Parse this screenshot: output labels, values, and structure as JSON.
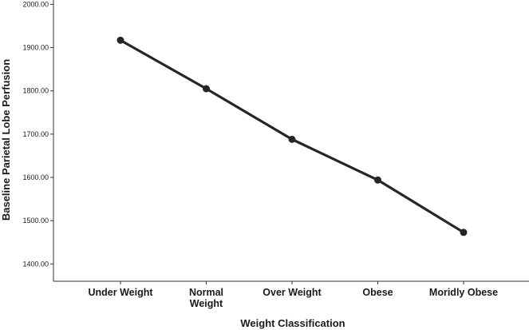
{
  "chart_data": {
    "type": "line",
    "categories": [
      "Under Weight",
      "Normal Weight",
      "Over Weight",
      "Obese",
      "Moridly Obese"
    ],
    "category_lines": [
      [
        "Under Weight"
      ],
      [
        "Normal",
        "Weight"
      ],
      [
        "Over Weight"
      ],
      [
        "Obese"
      ],
      [
        "Moridly Obese"
      ]
    ],
    "series": [
      {
        "values": [
          1917,
          1805,
          1688,
          1594,
          1473
        ],
        "color": "#262626"
      }
    ],
    "xlabel": "Weight Classification",
    "ylabel": "Baseline Parietal Lobe Perfusion",
    "ylim": [
      1360,
      2010
    ],
    "yticks": [
      2000,
      1900,
      1800,
      1700,
      1600,
      1500,
      1400
    ],
    "ytick_labels": [
      "2000.00",
      "1900.00",
      "1800.00",
      "1700.00",
      "1600.00",
      "1500.00",
      "1400.00"
    ],
    "grid": false,
    "legend": false
  }
}
